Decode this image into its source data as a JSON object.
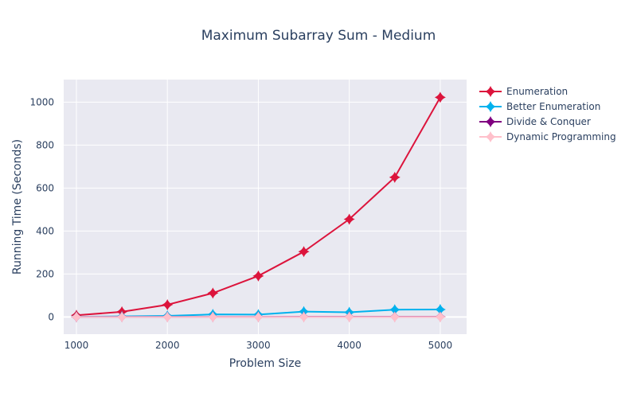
{
  "chart_data": {
    "type": "line",
    "title": "Maximum Subarray Sum - Medium",
    "xlabel": "Problem Size",
    "ylabel": "Running Time (Seconds)",
    "xlim": [
      860,
      5290
    ],
    "ylim": [
      -80,
      1105
    ],
    "x_ticks": [
      1000,
      2000,
      3000,
      4000,
      5000
    ],
    "y_ticks": [
      0,
      200,
      400,
      600,
      800,
      1000
    ],
    "grid": true,
    "legend_position": "right",
    "x": [
      1000,
      1500,
      2000,
      2500,
      3000,
      3500,
      4000,
      4500,
      5000
    ],
    "series": [
      {
        "name": "Enumeration",
        "color": "#dc143c",
        "marker": "star-diamond",
        "values": [
          8,
          24,
          57,
          111,
          191,
          304,
          455,
          650,
          1022
        ]
      },
      {
        "name": "Better Enumeration",
        "color": "#00b2ee",
        "marker": "star-diamond",
        "values": [
          1,
          3,
          5,
          12,
          11,
          25,
          22,
          34,
          35
        ]
      },
      {
        "name": "Divide & Conquer",
        "color": "#800080",
        "marker": "star-diamond",
        "values": [
          0.3,
          0.4,
          0.5,
          0.6,
          0.7,
          0.8,
          0.9,
          1.0,
          1.1
        ]
      },
      {
        "name": "Dynamic Programming",
        "color": "#ffc0cb",
        "marker": "star-diamond",
        "values": [
          0.05,
          0.05,
          0.06,
          0.07,
          0.08,
          0.09,
          0.1,
          0.1,
          0.11
        ]
      }
    ]
  }
}
